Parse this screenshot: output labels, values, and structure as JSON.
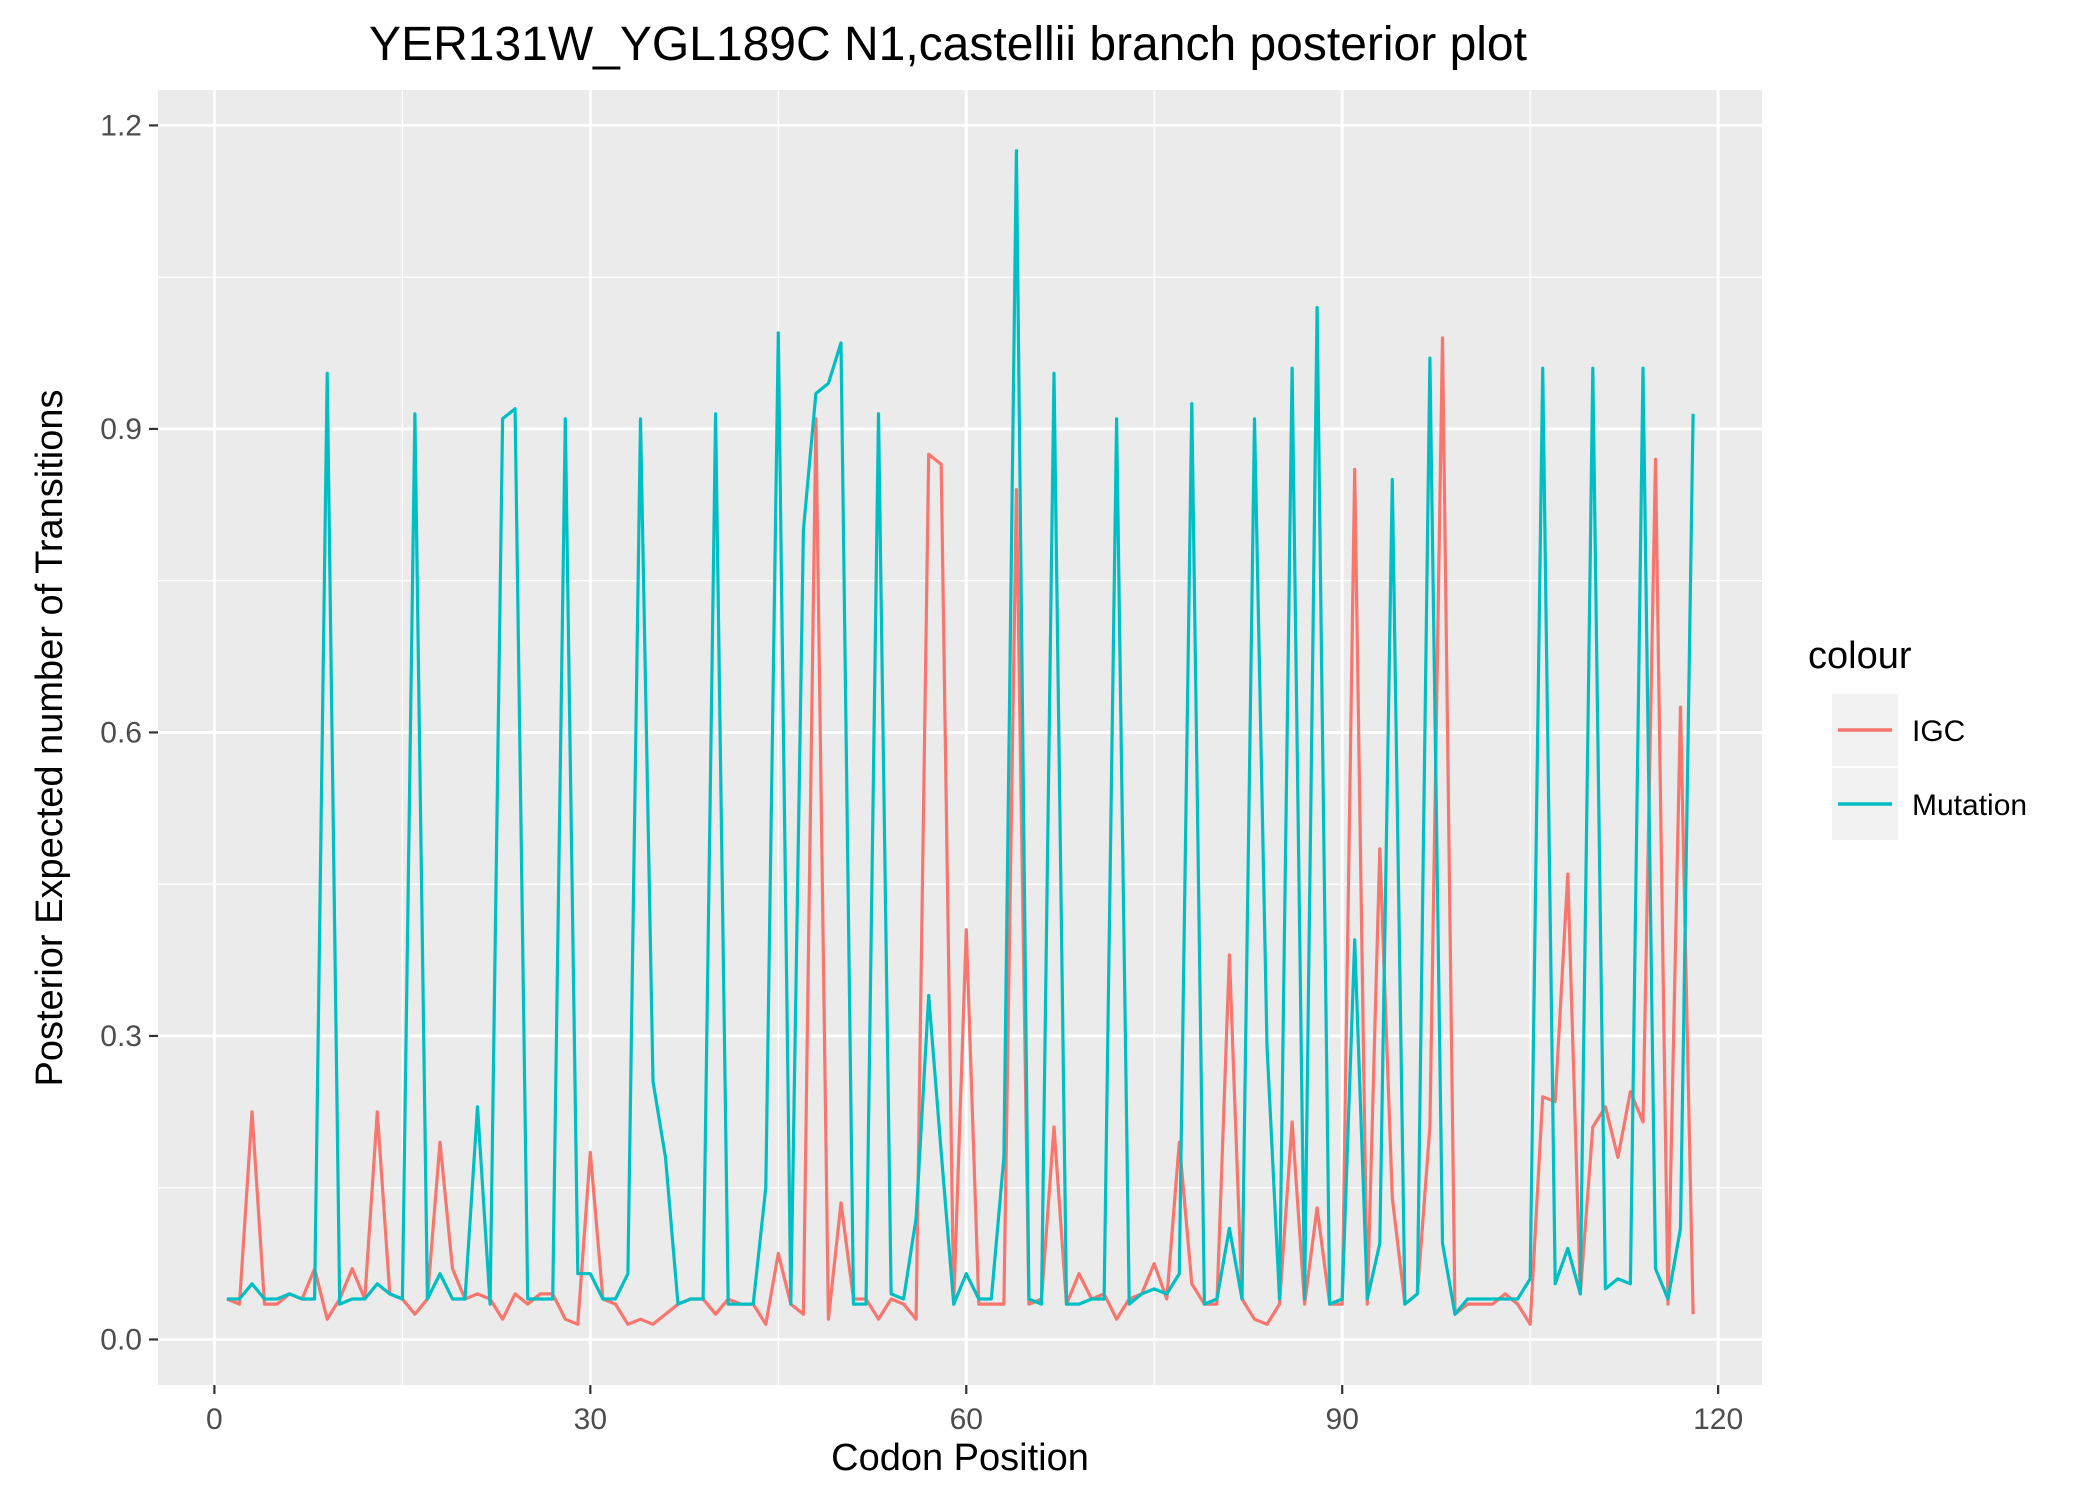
{
  "chart_data": {
    "type": "line",
    "title": "YER131W_YGL189C N1,castellii branch posterior plot",
    "xlabel": "Codon Position",
    "ylabel": "Posterior Expected number of Transitions",
    "xlim": [
      -4.5,
      123.5
    ],
    "ylim": [
      -0.045,
      1.235
    ],
    "x_ticks": [
      0,
      30,
      60,
      90,
      120
    ],
    "y_ticks": [
      0.0,
      0.3,
      0.6,
      0.9,
      1.2
    ],
    "x_tick_labels": [
      "0",
      "30",
      "60",
      "90",
      "120"
    ],
    "y_tick_labels": [
      "0.0",
      "0.3",
      "0.6",
      "0.9",
      "1.2"
    ],
    "grid": true,
    "legend": {
      "title": "colour",
      "position": "right"
    },
    "x": [
      1,
      2,
      3,
      4,
      5,
      6,
      7,
      8,
      9,
      10,
      11,
      12,
      13,
      14,
      15,
      16,
      17,
      18,
      19,
      20,
      21,
      22,
      23,
      24,
      25,
      26,
      27,
      28,
      29,
      30,
      31,
      32,
      33,
      34,
      35,
      36,
      37,
      38,
      39,
      40,
      41,
      42,
      43,
      44,
      45,
      46,
      47,
      48,
      49,
      50,
      51,
      52,
      53,
      54,
      55,
      56,
      57,
      58,
      59,
      60,
      61,
      62,
      63,
      64,
      65,
      66,
      67,
      68,
      69,
      70,
      71,
      72,
      73,
      74,
      75,
      76,
      77,
      78,
      79,
      80,
      81,
      82,
      83,
      84,
      85,
      86,
      87,
      88,
      89,
      90,
      91,
      92,
      93,
      94,
      95,
      96,
      97,
      98,
      99,
      100,
      101,
      102,
      103,
      104,
      105,
      106,
      107,
      108,
      109,
      110,
      111,
      112,
      113,
      114,
      115,
      116,
      117,
      118
    ],
    "series": [
      {
        "name": "IGC",
        "color": "#F8766D",
        "values": [
          0.04,
          0.035,
          0.225,
          0.035,
          0.035,
          0.045,
          0.04,
          0.07,
          0.02,
          0.04,
          0.07,
          0.04,
          0.225,
          0.045,
          0.04,
          0.025,
          0.04,
          0.195,
          0.07,
          0.04,
          0.045,
          0.04,
          0.02,
          0.045,
          0.035,
          0.045,
          0.045,
          0.02,
          0.015,
          0.185,
          0.04,
          0.035,
          0.015,
          0.02,
          0.015,
          0.025,
          0.035,
          0.04,
          0.04,
          0.025,
          0.04,
          0.035,
          0.035,
          0.015,
          0.085,
          0.035,
          0.025,
          0.91,
          0.02,
          0.135,
          0.04,
          0.04,
          0.02,
          0.04,
          0.035,
          0.02,
          0.875,
          0.865,
          0.035,
          0.405,
          0.035,
          0.035,
          0.035,
          0.84,
          0.035,
          0.04,
          0.21,
          0.035,
          0.065,
          0.04,
          0.045,
          0.02,
          0.04,
          0.045,
          0.075,
          0.04,
          0.195,
          0.055,
          0.035,
          0.035,
          0.38,
          0.04,
          0.02,
          0.015,
          0.035,
          0.215,
          0.035,
          0.13,
          0.035,
          0.035,
          0.86,
          0.035,
          0.485,
          0.14,
          0.035,
          0.045,
          0.21,
          0.99,
          0.025,
          0.035,
          0.035,
          0.035,
          0.045,
          0.035,
          0.015,
          0.24,
          0.235,
          0.46,
          0.045,
          0.21,
          0.23,
          0.18,
          0.245,
          0.215,
          0.87,
          0.035,
          0.625,
          0.025
        ]
      },
      {
        "name": "Mutation",
        "color": "#00BFC4",
        "values": [
          0.04,
          0.04,
          0.055,
          0.04,
          0.04,
          0.045,
          0.04,
          0.04,
          0.955,
          0.035,
          0.04,
          0.04,
          0.055,
          0.045,
          0.04,
          0.915,
          0.04,
          0.065,
          0.04,
          0.04,
          0.23,
          0.035,
          0.91,
          0.92,
          0.04,
          0.04,
          0.04,
          0.91,
          0.065,
          0.065,
          0.04,
          0.04,
          0.065,
          0.91,
          0.255,
          0.18,
          0.035,
          0.04,
          0.04,
          0.915,
          0.035,
          0.035,
          0.035,
          0.15,
          0.995,
          0.035,
          0.8,
          0.935,
          0.945,
          0.985,
          0.035,
          0.035,
          0.915,
          0.045,
          0.04,
          0.12,
          0.34,
          0.185,
          0.035,
          0.065,
          0.04,
          0.04,
          0.18,
          1.175,
          0.04,
          0.035,
          0.955,
          0.035,
          0.035,
          0.04,
          0.04,
          0.91,
          0.035,
          0.045,
          0.05,
          0.045,
          0.065,
          0.925,
          0.035,
          0.04,
          0.11,
          0.04,
          0.91,
          0.29,
          0.04,
          0.96,
          0.04,
          1.02,
          0.035,
          0.04,
          0.395,
          0.04,
          0.095,
          0.85,
          0.035,
          0.045,
          0.97,
          0.095,
          0.025,
          0.04,
          0.04,
          0.04,
          0.04,
          0.04,
          0.06,
          0.96,
          0.055,
          0.09,
          0.045,
          0.96,
          0.05,
          0.06,
          0.055,
          0.96,
          0.07,
          0.04,
          0.11,
          0.915
        ]
      }
    ]
  }
}
